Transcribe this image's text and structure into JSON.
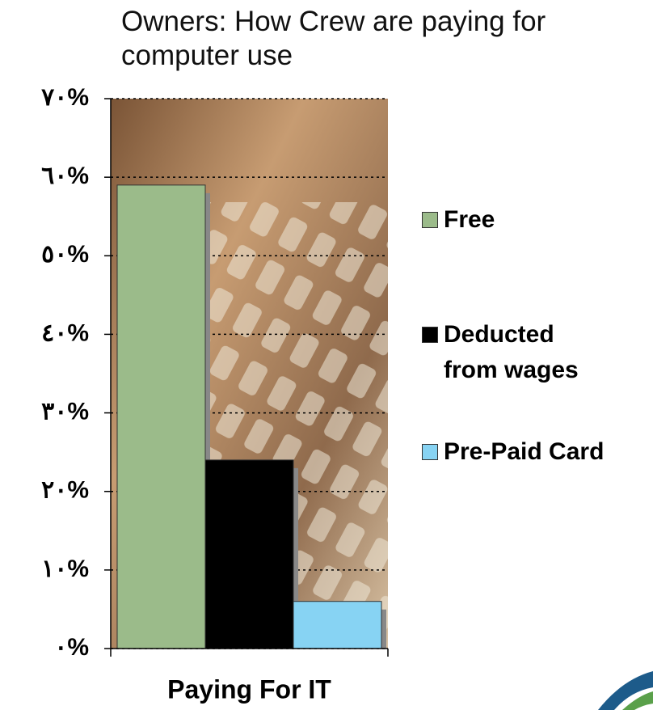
{
  "chart_data": {
    "type": "bar",
    "title": "Owners: How Crew are paying for computer use",
    "categories": [
      "Paying For IT"
    ],
    "series": [
      {
        "name": "Free",
        "color": "#9bbb8a",
        "values": [
          59
        ]
      },
      {
        "name": "Deducted from wages",
        "color": "#000000",
        "values": [
          24
        ]
      },
      {
        "name": "Pre-Paid Card",
        "color": "#87d3f3",
        "values": [
          6
        ]
      }
    ],
    "ylim": [
      0,
      70
    ],
    "yticks": [
      {
        "value": 0,
        "label": "٠%"
      },
      {
        "value": 10,
        "label": "١٠%"
      },
      {
        "value": 20,
        "label": "٢٠%"
      },
      {
        "value": 30,
        "label": "٣٠%"
      },
      {
        "value": 40,
        "label": "٤٠%"
      },
      {
        "value": 50,
        "label": "٥٠%"
      },
      {
        "value": 60,
        "label": "٦٠%"
      },
      {
        "value": 70,
        "label": "٧٠%"
      }
    ],
    "grid": true,
    "legend": "right"
  }
}
